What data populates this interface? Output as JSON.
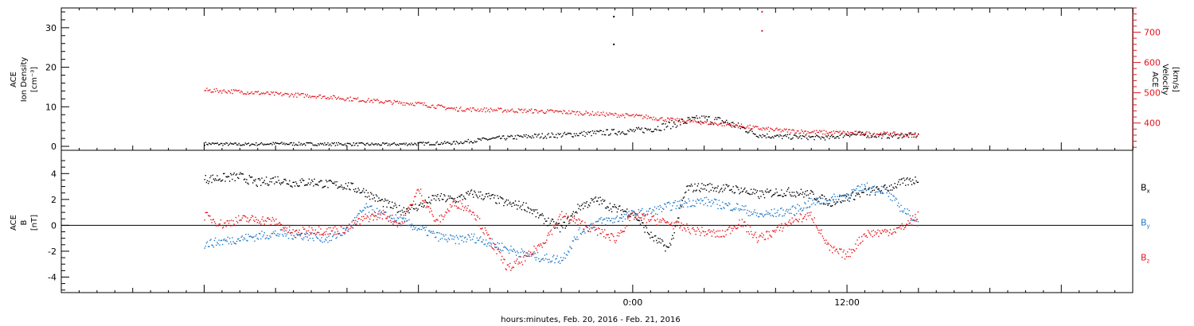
{
  "chart_data": [
    {
      "type": "scatter",
      "panel": "top",
      "ylabel_left": [
        "ACE",
        "Ion Density",
        "[cm⁻³]"
      ],
      "ylabel_right": [
        "ACE",
        "Velocity",
        "[km/s]"
      ],
      "ylim_left": [
        -1,
        35
      ],
      "ylim_right": [
        310,
        780
      ],
      "left_ticks": [
        0,
        10,
        20,
        30
      ],
      "right_ticks": [
        400,
        500,
        600,
        700
      ],
      "colors": {
        "density": "#000000",
        "velocity": "#e8141b"
      },
      "series": [
        {
          "axis": "left",
          "color": "#000000",
          "x": [
            -24,
            -22,
            -20,
            -18,
            -16,
            -14,
            -12,
            -10,
            -9,
            -8,
            -6,
            -4,
            -2,
            0,
            1,
            2,
            3,
            4,
            5,
            6,
            7,
            8,
            9,
            10,
            11,
            12,
            13,
            14,
            15,
            16
          ],
          "y": [
            0.8,
            0.6,
            0.8,
            0.7,
            0.7,
            0.6,
            0.8,
            1.0,
            1.5,
            2.0,
            2.6,
            3.0,
            3.5,
            4.0,
            4.5,
            5.5,
            6.5,
            7.0,
            6.5,
            5.0,
            3.0,
            2.6,
            2.5,
            2.4,
            2.3,
            3.2,
            3.0,
            2.8,
            2.8,
            3.0
          ],
          "spikes": [
            {
              "x": -1.1,
              "y": 33
            },
            {
              "x": -1.1,
              "y": 26
            }
          ]
        },
        {
          "axis": "right",
          "color": "#e8141b",
          "x": [
            -24,
            -22,
            -20,
            -18,
            -16,
            -14,
            -12,
            -10,
            -8,
            -6,
            -4,
            -2,
            0,
            1,
            2,
            3,
            4,
            5,
            6,
            7,
            8,
            9,
            10,
            11,
            12,
            13,
            14,
            15,
            16
          ],
          "y": [
            510,
            505,
            497,
            492,
            482,
            472,
            465,
            448,
            445,
            442,
            438,
            432,
            425,
            420,
            412,
            408,
            403,
            398,
            392,
            384,
            378,
            375,
            372,
            370,
            369,
            367,
            366,
            364,
            360
          ],
          "spikes": [
            {
              "x": 7.2,
              "y": 770
            },
            {
              "x": 7.2,
              "y": 707
            }
          ]
        }
      ]
    },
    {
      "type": "scatter",
      "panel": "bottom",
      "ylabel_left": [
        "ACE",
        "B",
        "[nT]"
      ],
      "ylim": [
        -5.2,
        5.8
      ],
      "ticks": [
        -4,
        -2,
        0,
        2,
        4
      ],
      "zero_line": true,
      "series": [
        {
          "name": "Bx",
          "color": "#000000",
          "x": [
            -24,
            -23,
            -22,
            -21,
            -20,
            -19,
            -18,
            -17,
            -16,
            -15,
            -14,
            -13,
            -12,
            -11,
            -10,
            -9,
            -8,
            -7,
            -6,
            -5,
            -4,
            -3,
            -2,
            -1,
            0,
            1,
            2,
            3,
            4,
            5,
            6,
            7,
            8,
            9,
            10,
            11,
            12,
            13,
            14,
            15,
            16
          ],
          "y": [
            3.6,
            3.7,
            3.8,
            3.3,
            3.6,
            3.3,
            3.4,
            3.2,
            3.1,
            2.6,
            1.8,
            1.2,
            1.5,
            2.2,
            2.0,
            2.5,
            2.2,
            1.7,
            1.5,
            0.5,
            -0.2,
            1.5,
            2.0,
            1.3,
            1.0,
            -0.8,
            -1.8,
            2.9,
            3.0,
            2.9,
            2.8,
            2.4,
            2.6,
            2.6,
            2.4,
            1.8,
            2.2,
            2.6,
            2.8,
            3.3,
            3.6
          ]
        },
        {
          "name": "By",
          "color": "#1f78c8",
          "x": [
            -24,
            -23,
            -22,
            -21,
            -20,
            -19,
            -18,
            -17,
            -16,
            -15,
            -14,
            -13,
            -12,
            -11,
            -10,
            -9,
            -8,
            -7,
            -6,
            -5,
            -4,
            -3,
            -2,
            -1,
            0,
            1,
            2,
            3,
            4,
            5,
            6,
            7,
            8,
            9,
            10,
            11,
            12,
            13,
            14,
            15,
            16
          ],
          "y": [
            -1.4,
            -1.2,
            -1.0,
            -0.8,
            -0.6,
            -0.7,
            -0.8,
            -1.0,
            -0.3,
            1.4,
            0.8,
            0.4,
            -0.2,
            -0.8,
            -1.1,
            -0.9,
            -1.3,
            -1.8,
            -2.2,
            -2.5,
            -2.6,
            -0.5,
            0.3,
            0.5,
            0.9,
            1.1,
            1.5,
            1.8,
            1.9,
            1.6,
            1.4,
            0.8,
            1.0,
            1.2,
            1.8,
            2.0,
            2.4,
            3.0,
            2.8,
            1.4,
            0.2
          ]
        },
        {
          "name": "Bz",
          "color": "#e8141b",
          "x": [
            -24,
            -23,
            -22,
            -21,
            -20,
            -19,
            -18,
            -17,
            -16,
            -15,
            -14,
            -13,
            -12,
            -11,
            -10,
            -9,
            -8,
            -7,
            -6,
            -5,
            -4,
            -3,
            -2,
            -1,
            0,
            1,
            2,
            3,
            4,
            5,
            6,
            7,
            8,
            9,
            10,
            11,
            12,
            13,
            14,
            15,
            16
          ],
          "y": [
            0.8,
            0.1,
            0.5,
            0.5,
            0.3,
            -0.6,
            -0.3,
            -0.4,
            -0.2,
            0.6,
            0.9,
            0.1,
            2.8,
            0.2,
            1.8,
            1.2,
            -1.2,
            -3.3,
            -2.5,
            -1.2,
            0.8,
            0.2,
            -0.4,
            -1.0,
            0.8,
            0.5,
            0.2,
            -0.2,
            -0.5,
            -0.7,
            0.3,
            -1.0,
            -0.4,
            0.5,
            0.8,
            -1.8,
            -2.3,
            -0.6,
            -0.5,
            -0.2,
            0.8
          ]
        }
      ],
      "legend": [
        "B",
        "B",
        "B"
      ],
      "legend_subs": [
        "x",
        "y",
        "z"
      ]
    }
  ],
  "x_axis": {
    "xlim": [
      -32,
      28
    ],
    "ticks": [
      0,
      12
    ],
    "tick_labels": [
      "0:00",
      "12:00"
    ],
    "xlabel": "hours:minutes, Feb. 20, 2016 - Feb. 21, 2016"
  }
}
